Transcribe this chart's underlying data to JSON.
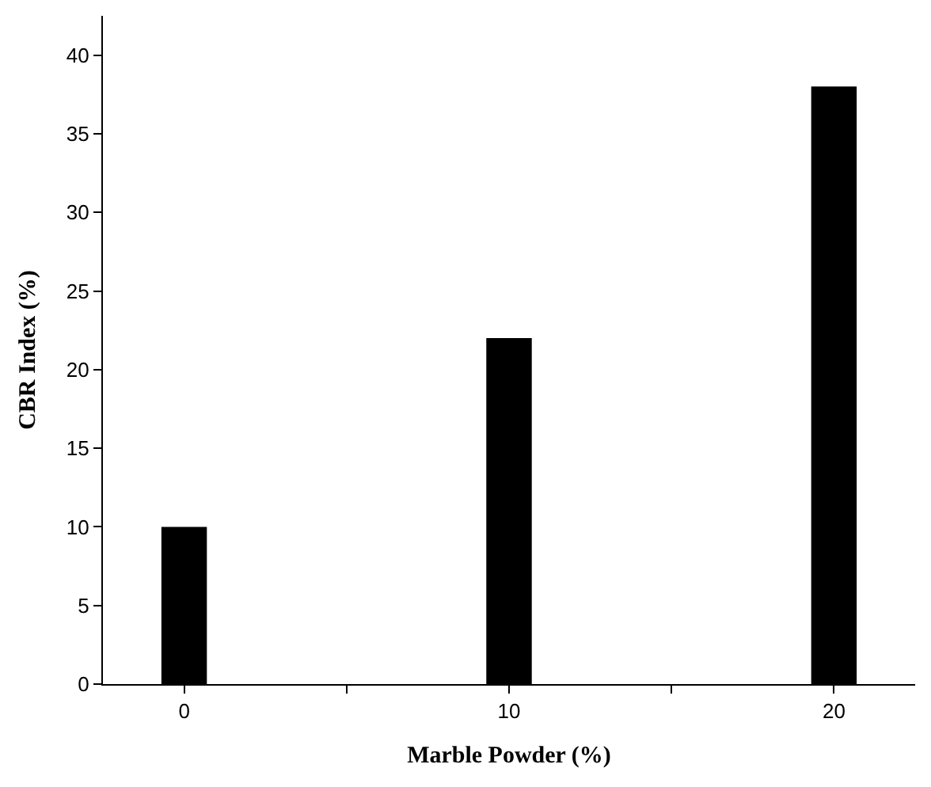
{
  "chart_data": {
    "type": "bar",
    "xlabel": "Marble Powder (%)",
    "ylabel": "CBR Index (%)",
    "x": [
      0,
      10,
      20
    ],
    "values": [
      10,
      22,
      38
    ],
    "color": "#000000",
    "xlim": [
      -2.5,
      22.5
    ],
    "xticks": [
      0,
      {
        "value": 5,
        "label": null
      },
      10,
      {
        "value": 15,
        "label": null
      },
      20
    ],
    "ylim": [
      0,
      42.5
    ],
    "yticks": [
      0,
      5,
      10,
      15,
      20,
      25,
      30,
      35,
      40
    ],
    "legend": false
  }
}
